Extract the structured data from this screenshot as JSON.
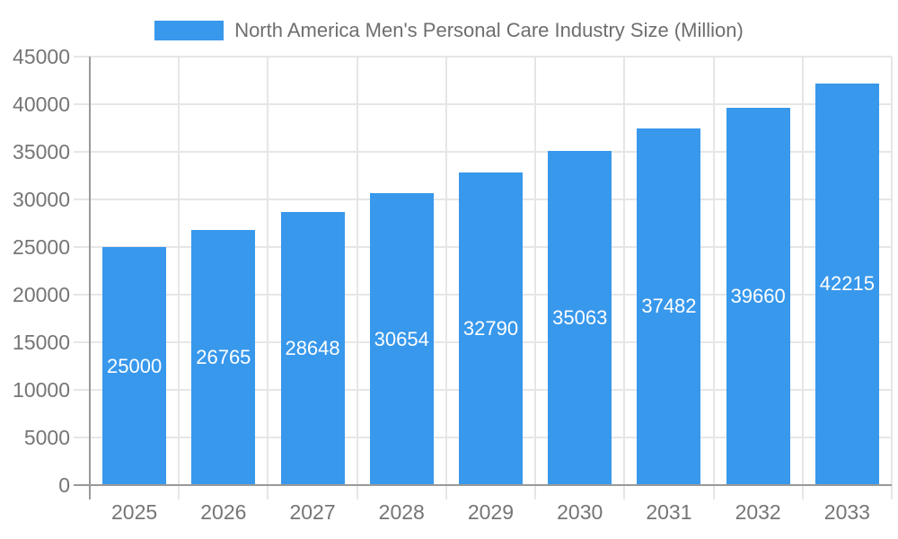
{
  "chart_data": {
    "type": "bar",
    "title": "North America Men's Personal Care Industry Size (Million)",
    "legend": {
      "label": "North America Men's Personal Care Industry Size (Million)",
      "position": "top-center"
    },
    "categories": [
      "2025",
      "2026",
      "2027",
      "2028",
      "2029",
      "2030",
      "2031",
      "2032",
      "2033"
    ],
    "values": [
      25000,
      26765,
      28648,
      30654,
      32790,
      35063,
      37482,
      39660,
      42215
    ],
    "xlabel": "",
    "ylabel": "",
    "ylim": [
      0,
      45000
    ],
    "y_ticks": [
      0,
      5000,
      10000,
      15000,
      20000,
      25000,
      30000,
      35000,
      40000,
      45000
    ],
    "grid": "horizontal and vertical light gridlines with outside tick extensions",
    "value_label_position": "inside bar, vertically centered, white",
    "colors": {
      "bar": "#3898EC",
      "grid": "#E6E6E6",
      "axis": "#999999",
      "tick_label": "#757575",
      "legend_text": "#6E6E6E",
      "value_label": "#FFFFFF",
      "background": "#FFFFFF"
    }
  }
}
